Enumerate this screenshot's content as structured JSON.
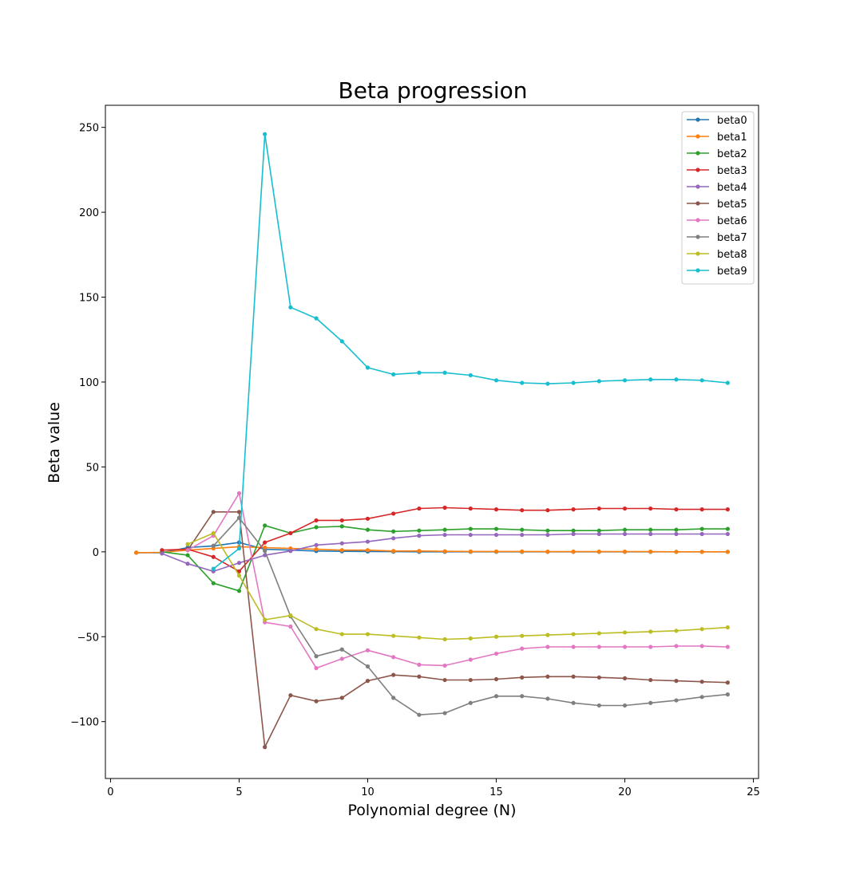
{
  "chart_data": {
    "type": "line",
    "title": "Beta progression",
    "xlabel": "Polynomial degree (N)",
    "ylabel": "Beta value",
    "xlim": [
      -0.2,
      25.2
    ],
    "ylim": [
      -133.5,
      263
    ],
    "xticks": [
      0,
      5,
      10,
      15,
      20,
      25
    ],
    "yticks": [
      -100,
      -50,
      0,
      50,
      100,
      150,
      200,
      250
    ],
    "yticklabels": [
      "−100",
      "−50",
      "0",
      "50",
      "100",
      "150",
      "200",
      "250"
    ],
    "grid": false,
    "legend_position": "top-right",
    "series": [
      {
        "name": "beta0",
        "color": "#1f77b4",
        "x": [
          1,
          2,
          3,
          4,
          5,
          6,
          7,
          8,
          9,
          10,
          11,
          12,
          13,
          14,
          15,
          16,
          17,
          18,
          19,
          20,
          21,
          22,
          23,
          24
        ],
        "values": [
          -0.5,
          -0.5,
          2.5,
          3.5,
          5.5,
          1.5,
          1,
          0.5,
          0.3,
          0.2,
          0.1,
          0,
          0,
          0,
          0,
          0,
          0,
          0,
          0,
          0,
          0,
          0,
          0,
          0
        ]
      },
      {
        "name": "beta1",
        "color": "#ff7f0e",
        "x": [
          1,
          2,
          3,
          4,
          5,
          6,
          7,
          8,
          9,
          10,
          11,
          12,
          13,
          14,
          15,
          16,
          17,
          18,
          19,
          20,
          21,
          22,
          23,
          24
        ],
        "values": [
          -0.5,
          -0.3,
          1,
          2,
          3,
          2.5,
          2,
          1.5,
          1,
          1,
          0.5,
          0.5,
          0.3,
          0.2,
          0.2,
          0.2,
          0.1,
          0.1,
          0.1,
          0.1,
          0.1,
          0,
          0,
          0
        ]
      },
      {
        "name": "beta2",
        "color": "#2ca02c",
        "x": [
          2,
          3,
          4,
          5,
          6,
          7,
          8,
          9,
          10,
          11,
          12,
          13,
          14,
          15,
          16,
          17,
          18,
          19,
          20,
          21,
          22,
          23,
          24
        ],
        "values": [
          0,
          -2,
          -18.5,
          -23,
          15.5,
          11,
          14.5,
          15,
          13,
          12,
          12.5,
          13,
          13.5,
          13.5,
          13,
          12.5,
          12.5,
          12.5,
          13,
          13,
          13,
          13.5,
          13.5
        ]
      },
      {
        "name": "beta3",
        "color": "#d62728",
        "x": [
          2,
          3,
          4,
          5,
          6,
          7,
          8,
          9,
          10,
          11,
          12,
          13,
          14,
          15,
          16,
          17,
          18,
          19,
          20,
          21,
          22,
          23,
          24
        ],
        "values": [
          1,
          1.5,
          -3,
          -11.5,
          5.5,
          11,
          18.5,
          18.5,
          19.5,
          22.5,
          25.5,
          26,
          25.5,
          25,
          24.5,
          24.5,
          25,
          25.5,
          25.5,
          25.5,
          25,
          25,
          25
        ]
      },
      {
        "name": "beta4",
        "color": "#9467bd",
        "x": [
          2,
          3,
          4,
          5,
          6,
          7,
          8,
          9,
          10,
          11,
          12,
          13,
          14,
          15,
          16,
          17,
          18,
          19,
          20,
          21,
          22,
          23,
          24
        ],
        "values": [
          -1,
          -7,
          -11.5,
          -6.5,
          -2,
          0.5,
          4,
          5,
          6,
          8,
          9.5,
          10,
          10,
          10,
          10,
          10,
          10.5,
          10.5,
          10.5,
          10.5,
          10.5,
          10.5,
          10.5
        ]
      },
      {
        "name": "beta5",
        "color": "#8c564b",
        "x": [
          3,
          4,
          5,
          6,
          7,
          8,
          9,
          10,
          11,
          12,
          13,
          14,
          15,
          16,
          17,
          18,
          19,
          20,
          21,
          22,
          23,
          24
        ],
        "values": [
          1,
          23.5,
          23.5,
          -115,
          -84.5,
          -88,
          -86,
          -76,
          -72.5,
          -73.5,
          -75.5,
          -75.5,
          -75,
          -74,
          -73.5,
          -73.5,
          -74,
          -74.5,
          -75.5,
          -76,
          -76.5,
          -77
        ]
      },
      {
        "name": "beta6",
        "color": "#e377c2",
        "x": [
          3,
          4,
          5,
          6,
          7,
          8,
          9,
          10,
          11,
          12,
          13,
          14,
          15,
          16,
          17,
          18,
          19,
          20,
          21,
          22,
          23,
          24
        ],
        "values": [
          1,
          9.5,
          34.5,
          -41.5,
          -44,
          -68.5,
          -63,
          -58,
          -62,
          -66.5,
          -67,
          -63.5,
          -60,
          -57,
          -56,
          -56,
          -56,
          -56,
          -56,
          -55.5,
          -55.5,
          -56
        ]
      },
      {
        "name": "beta7",
        "color": "#7f7f7f",
        "x": [
          4,
          5,
          6,
          7,
          8,
          9,
          10,
          11,
          12,
          13,
          14,
          15,
          16,
          17,
          18,
          19,
          20,
          21,
          22,
          23,
          24
        ],
        "values": [
          3.5,
          20,
          0.5,
          -38,
          -61.5,
          -57.5,
          -67.5,
          -86,
          -96,
          -95,
          -89,
          -85,
          -85,
          -86.5,
          -89,
          -90.5,
          -90.5,
          -89,
          -87.5,
          -85.5,
          -84
        ]
      },
      {
        "name": "beta8",
        "color": "#bcbd22",
        "x": [
          3,
          4,
          5,
          6,
          7,
          8,
          9,
          10,
          11,
          12,
          13,
          14,
          15,
          16,
          17,
          18,
          19,
          20,
          21,
          22,
          23,
          24
        ],
        "values": [
          4.5,
          11,
          -14,
          -40,
          -37.5,
          -45.5,
          -48.5,
          -48.5,
          -49.5,
          -50.5,
          -51.5,
          -51,
          -50,
          -49.5,
          -49,
          -48.5,
          -48,
          -47.5,
          -47,
          -46.5,
          -45.5,
          -44.5
        ]
      },
      {
        "name": "beta9",
        "color": "#17becf",
        "x": [
          4,
          5,
          6,
          7,
          8,
          9,
          10,
          11,
          12,
          13,
          14,
          15,
          16,
          17,
          18,
          19,
          20,
          21,
          22,
          23,
          24
        ],
        "values": [
          -10,
          2,
          246,
          144,
          137.5,
          124,
          108.5,
          104.5,
          105.5,
          105.5,
          104,
          101,
          99.5,
          99,
          99.5,
          100.5,
          101,
          101.5,
          101.5,
          101,
          99.5
        ]
      }
    ]
  }
}
